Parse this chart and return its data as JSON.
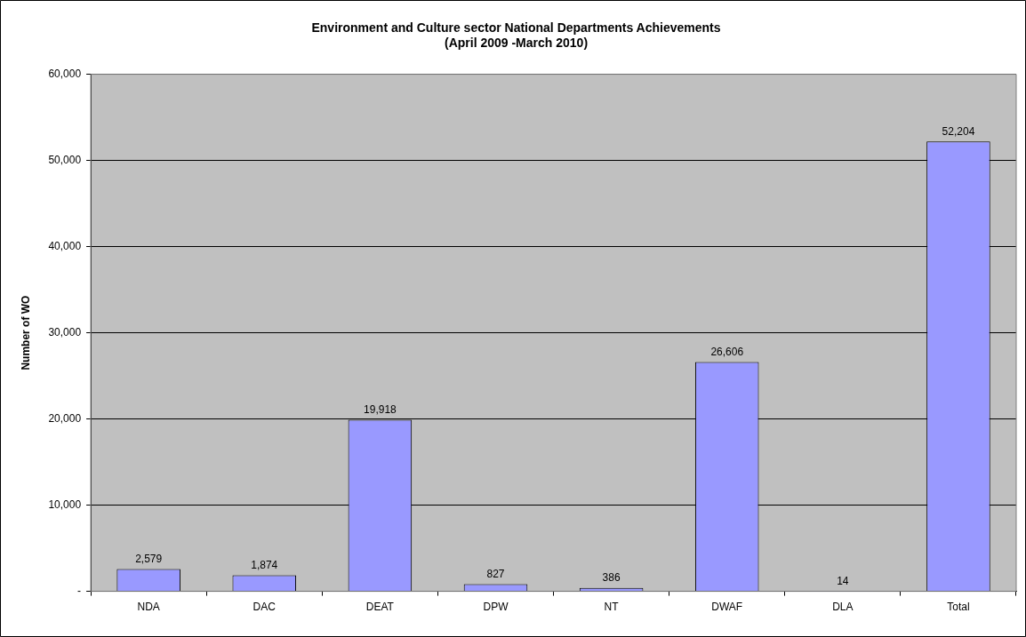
{
  "chart_data": {
    "type": "bar",
    "title": "Environment and Culture sector National Departments Achievements",
    "subtitle": "(April 2009 -March 2010)",
    "ylabel": "Number of WO",
    "categories": [
      "NDA",
      "DAC",
      "DEAT",
      "DPW",
      "NT",
      "DWAF",
      "DLA",
      "Total"
    ],
    "values": [
      2579,
      1874,
      19918,
      827,
      386,
      26606,
      14,
      52204
    ],
    "value_labels": [
      "2,579",
      "1,874",
      "19,918",
      "827",
      "386",
      "26,606",
      "14",
      "52,204"
    ],
    "color": "#9999ff",
    "ylim": [
      0,
      60000
    ],
    "yticks": [
      {
        "value": 0,
        "label": "-"
      },
      {
        "value": 10000,
        "label": "10,000"
      },
      {
        "value": 20000,
        "label": "20,000"
      },
      {
        "value": 30000,
        "label": "30,000"
      },
      {
        "value": 40000,
        "label": "40,000"
      },
      {
        "value": 50000,
        "label": "50,000"
      },
      {
        "value": 60000,
        "label": "60,000"
      }
    ],
    "grid": "y",
    "legend": false
  }
}
